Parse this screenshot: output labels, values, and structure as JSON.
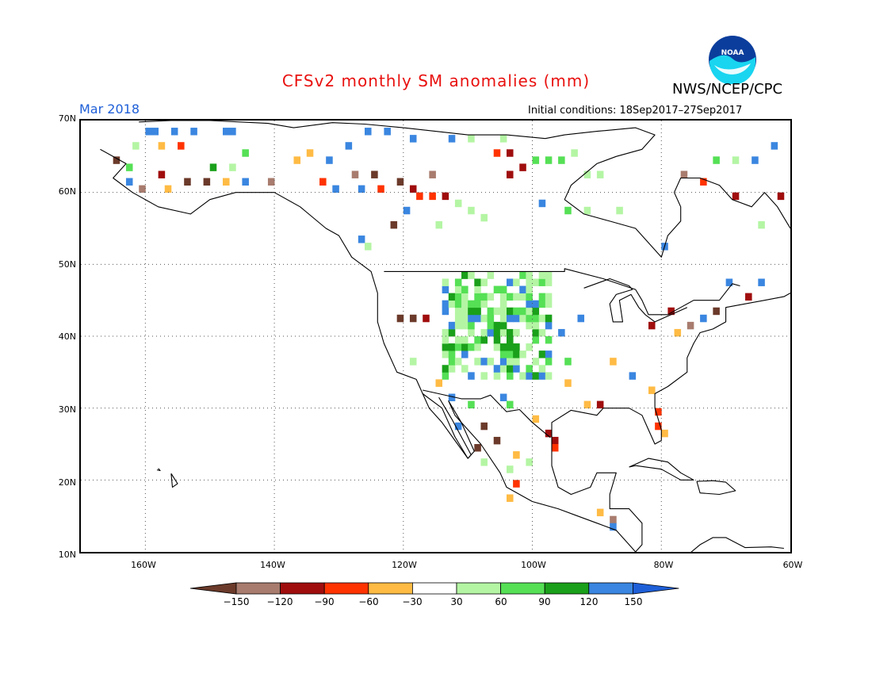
{
  "title": "CFSv2 monthly SM anomalies (mm)",
  "agency": "NWS/NCEP/CPC",
  "logo_text": "NOAA",
  "month_label": "Mar 2018",
  "initial_conditions": "Initial conditions: 18Sep2017–27Sep2017",
  "lat_labels": [
    "70N",
    "60N",
    "50N",
    "40N",
    "30N",
    "20N",
    "10N"
  ],
  "lon_labels": [
    "160W",
    "140W",
    "120W",
    "100W",
    "80W",
    "60W"
  ],
  "colorbar": {
    "labels": [
      "−150",
      "−120",
      "−90",
      "−60",
      "−30",
      "30",
      "60",
      "90",
      "120",
      "150"
    ],
    "colors": [
      "#6b3a2a",
      "#a87c6e",
      "#a00d0d",
      "#ff3300",
      "#ffbb44",
      "#ffffff",
      "#b4f5a4",
      "#55e055",
      "#1aa01a",
      "#3a86e0",
      "#1e5fd8"
    ]
  },
  "map": {
    "lon_range": [
      -170,
      -60
    ],
    "lat_range": [
      10,
      70
    ],
    "grid": "dotted"
  }
}
